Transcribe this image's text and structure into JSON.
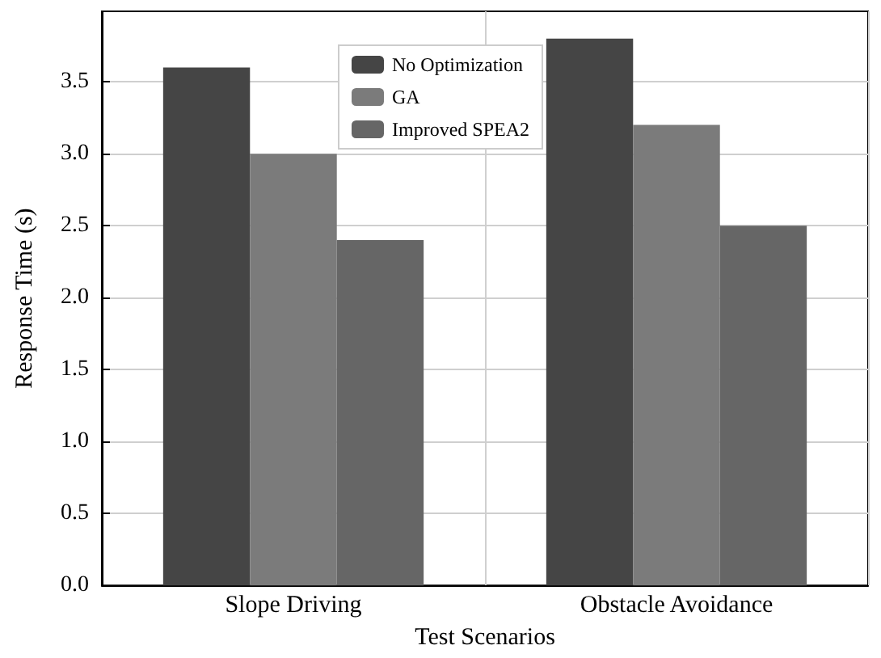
{
  "chart_data": {
    "type": "bar",
    "xlabel": "Test Scenarios",
    "ylabel": "Response Time (s)",
    "categories": [
      "Slope Driving",
      "Obstacle Avoidance"
    ],
    "series": [
      {
        "name": "No Optimization",
        "color": "#454545",
        "values": [
          3.6,
          3.8
        ]
      },
      {
        "name": "GA",
        "color": "#7b7b7b",
        "values": [
          3.0,
          3.2
        ]
      },
      {
        "name": "Improved SPEA2",
        "color": "#666666",
        "values": [
          2.4,
          2.5
        ]
      }
    ],
    "ylim": [
      0,
      3.99
    ],
    "yticks": [
      {
        "value": 0,
        "label": "0.0"
      },
      0.5,
      {
        "value": 1,
        "label": "1.0"
      },
      1.5,
      {
        "value": 2,
        "label": "2.0"
      },
      2.5,
      {
        "value": 3,
        "label": "3.0"
      },
      3.5
    ],
    "grid": true,
    "legend": "top"
  }
}
